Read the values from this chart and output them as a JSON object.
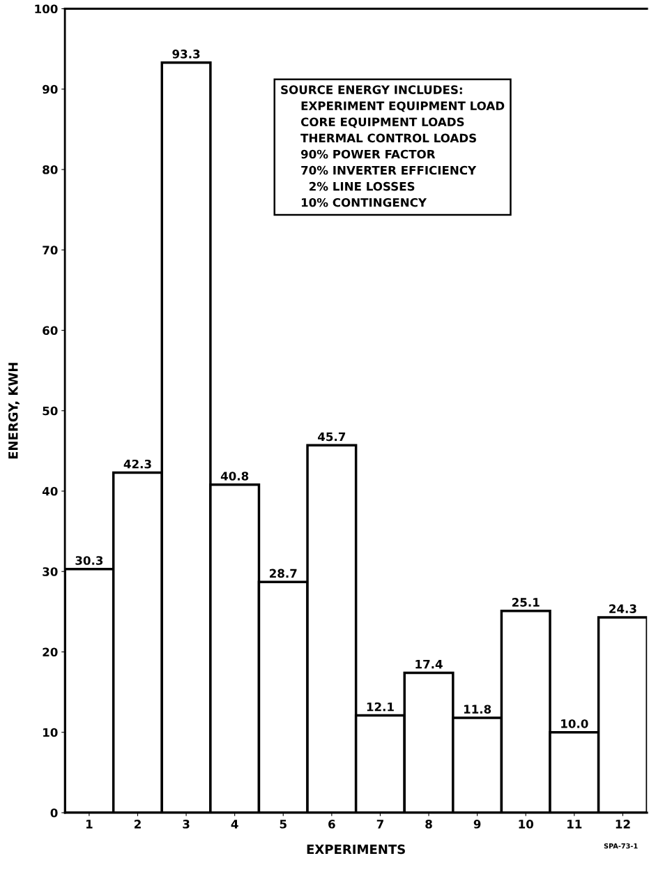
{
  "chart_data": {
    "type": "bar",
    "xlabel": "EXPERIMENTS",
    "ylabel": "ENERGY, KWH",
    "categories": [
      "1",
      "2",
      "3",
      "4",
      "5",
      "6",
      "7",
      "8",
      "9",
      "10",
      "11",
      "12"
    ],
    "values": [
      30.3,
      42.3,
      93.3,
      40.8,
      28.7,
      45.7,
      12.1,
      17.4,
      11.8,
      25.1,
      10.0,
      24.3
    ],
    "value_labels": [
      "30.3",
      "42.3",
      "93.3",
      "40.8",
      "28.7",
      "45.7",
      "12.1",
      "17.4",
      "11.8",
      "25.1",
      "10.0",
      "24.3"
    ],
    "color": "#ffffff",
    "ylim": [
      0,
      100
    ],
    "yticks": [
      0,
      10,
      20,
      30,
      40,
      50,
      60,
      70,
      80,
      90,
      100
    ],
    "grid": false,
    "annotations": [
      "SOURCE ENERGY INCLUDES:\n     EXPERIMENT EQUIPMENT LOAD\n     CORE EQUIPMENT LOADS\n     THERMAL CONTROL LOADS\n     90% POWER FACTOR\n     70% INVERTER EFFICIENCY\n       2% LINE LOSSES\n     10% CONTINGENCY",
      "SPA-73-1"
    ]
  }
}
